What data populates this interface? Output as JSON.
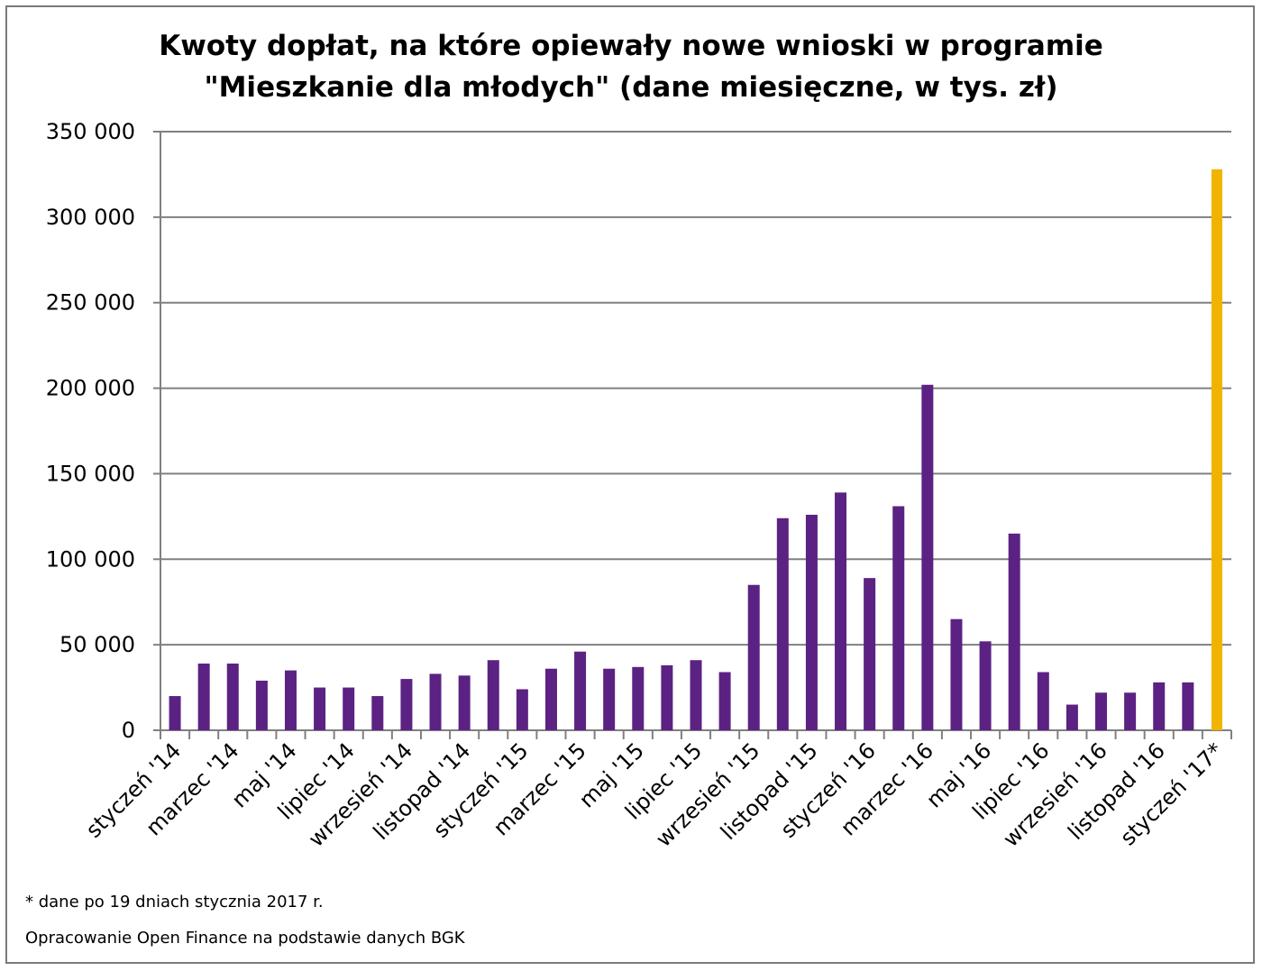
{
  "chart_data": {
    "type": "bar",
    "title_line1": "Kwoty dopłat, na które opiewały nowe wnioski w programie",
    "title_line2": "\"Mieszkanie dla młodych\" (dane miesięczne, w tys. zł)",
    "xlabel": "",
    "ylabel": "",
    "ylim": [
      0,
      350000
    ],
    "yticks": [
      "0",
      "50 000",
      "100 000",
      "150 000",
      "200 000",
      "250 000",
      "300 000",
      "350 000"
    ],
    "x_tick_labels": [
      "styczeń '14",
      "marzec '14",
      "maj '14",
      "lipiec '14",
      "wrzesień '14",
      "listopad '14",
      "styczeń '15",
      "marzec '15",
      "maj '15",
      "lipiec '15",
      "wrzesień '15",
      "listopad '15",
      "styczeń '16",
      "marzec '16",
      "maj '16",
      "lipiec '16",
      "wrzesień '16",
      "listopad '16",
      "styczeń '17*"
    ],
    "values": [
      20000,
      39000,
      39000,
      29000,
      35000,
      25000,
      25000,
      20000,
      30000,
      33000,
      32000,
      41000,
      24000,
      36000,
      46000,
      36000,
      37000,
      38000,
      41000,
      34000,
      85000,
      124000,
      126000,
      139000,
      89000,
      131000,
      202000,
      65000,
      52000,
      115000,
      34000,
      15000,
      22000,
      22000,
      28000,
      28000,
      328000
    ],
    "grid": true,
    "legend": "none",
    "colors": {
      "bar": "#5b2283",
      "highlight": "#f0b400",
      "grid": "#808080"
    }
  },
  "footnotes": {
    "note": "* dane po 19 dniach stycznia 2017 r.",
    "source": "Opracowanie Open Finance na podstawie danych BGK"
  }
}
